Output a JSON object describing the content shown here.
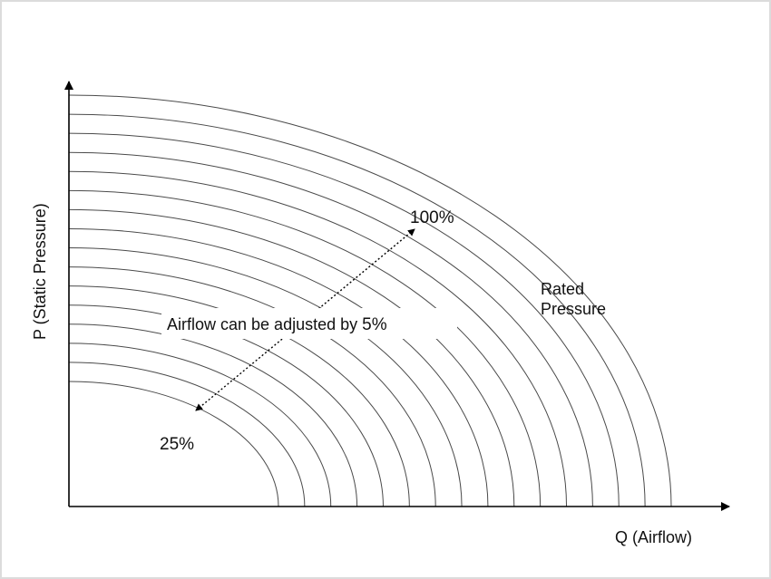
{
  "chart_data": {
    "type": "line",
    "xlabel": "Q (Airflow)",
    "ylabel": "P (Static Pressure)",
    "axes_have_ticks": false,
    "curve_count": 16,
    "speed_range_percent": [
      25,
      100
    ],
    "step_percent": 5,
    "annotations": {
      "max_label": "100%",
      "min_label": "25%",
      "rated_label_line1": "Rated",
      "rated_label_line2": "Pressure",
      "adjust_prefix": "Airflow can be adjusted by ",
      "adjust_value": "5%"
    },
    "curve_color": "#4a4a4a"
  }
}
